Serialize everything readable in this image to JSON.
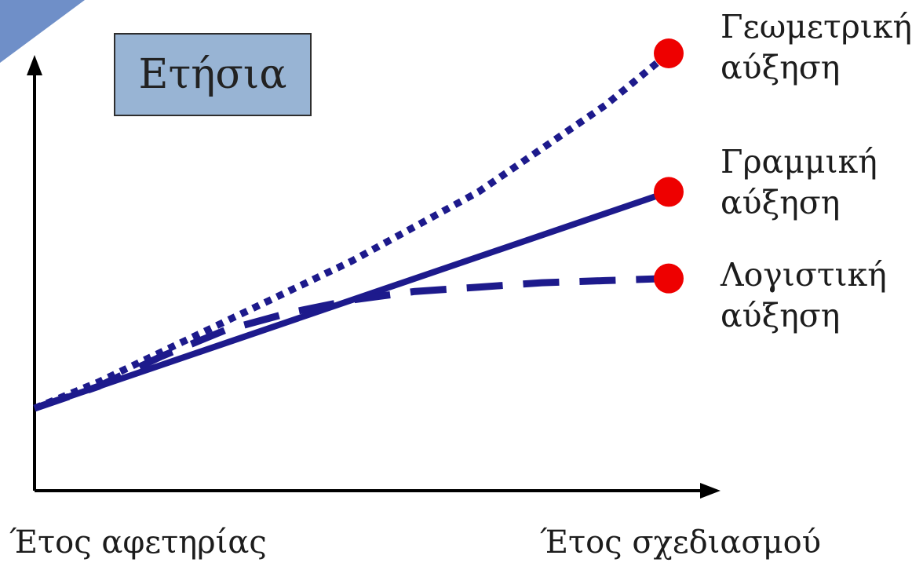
{
  "chart_data": {
    "type": "line",
    "title": "Ετήσια",
    "xlabel": "",
    "ylabel": "",
    "x_ticks": [
      "Έτος αφετηρίας",
      "Έτος σχεδιασμού"
    ],
    "xlim": [
      0,
      1
    ],
    "ylim": [
      0,
      1
    ],
    "grid": false,
    "legend_position": "right",
    "series": [
      {
        "name": "Γεωμετρική αύξηση",
        "label_lines": [
          "Γεωμετρική",
          "αύξηση"
        ],
        "style": "dotted",
        "x": [
          0,
          0.1,
          0.2,
          0.3,
          0.4,
          0.5,
          0.6,
          0.7,
          0.8,
          0.9,
          1.0
        ],
        "y": [
          0.18,
          0.24,
          0.31,
          0.38,
          0.45,
          0.52,
          0.6,
          0.68,
          0.78,
          0.88,
          1.0
        ]
      },
      {
        "name": "Γραμμική αύξηση",
        "label_lines": [
          "Γραμμική",
          "αύξηση"
        ],
        "style": "solid",
        "x": [
          0,
          1.0
        ],
        "y": [
          0.18,
          0.68
        ]
      },
      {
        "name": "Λογιστική αύξηση",
        "label_lines": [
          "Λογιστική",
          "αύξηση"
        ],
        "style": "dashed",
        "x": [
          0,
          0.1,
          0.2,
          0.3,
          0.4,
          0.5,
          0.6,
          0.7,
          0.8,
          0.9,
          1.0
        ],
        "y": [
          0.18,
          0.23,
          0.3,
          0.36,
          0.4,
          0.43,
          0.45,
          0.46,
          0.47,
          0.475,
          0.48
        ]
      }
    ],
    "colors": {
      "line": "#1d1a8c",
      "endpoint": "#ee0000",
      "axis": "#000000",
      "title_box": "#98b4d4",
      "corner": "#6f8fc8"
    }
  }
}
